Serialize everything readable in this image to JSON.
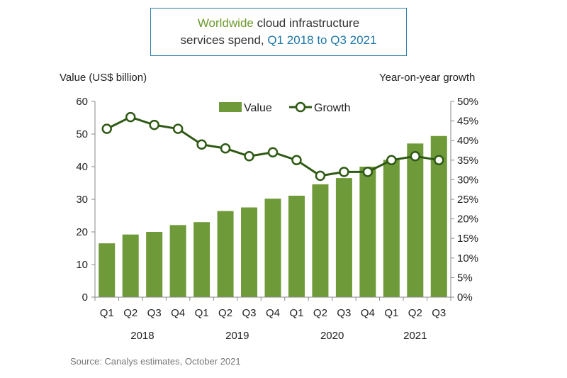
{
  "title": {
    "part1": "Worldwide",
    "part2": " cloud infrastructure",
    "part3": "services spend, ",
    "part4": "Q1 2018 to Q3 2021"
  },
  "source": "Source: Canalys estimates, October 2021",
  "colors": {
    "bar": "#6f9a3a",
    "line": "#2f5a14",
    "title_accent_green": "#6c9a2e",
    "title_accent_blue": "#1f77a8"
  },
  "chart_data": {
    "type": "bar",
    "title": "Worldwide cloud infrastructure services spend, Q1 2018 to Q3 2021",
    "ylabel": "Value (US$ billion)",
    "y2label": "Year-on-year growth",
    "ylim": [
      0,
      60
    ],
    "y2lim": [
      0,
      0.5
    ],
    "yticks": [
      "0",
      "10",
      "20",
      "30",
      "40",
      "50",
      "60"
    ],
    "y2ticks": [
      "0%",
      "5%",
      "10%",
      "15%",
      "20%",
      "25%",
      "30%",
      "35%",
      "40%",
      "45%",
      "50%"
    ],
    "categories": [
      "Q1",
      "Q2",
      "Q3",
      "Q4",
      "Q1",
      "Q2",
      "Q3",
      "Q4",
      "Q1",
      "Q2",
      "Q3",
      "Q4",
      "Q1",
      "Q2",
      "Q3"
    ],
    "years": [
      {
        "label": "2018",
        "start": 0,
        "end": 3
      },
      {
        "label": "2019",
        "start": 4,
        "end": 7
      },
      {
        "label": "2020",
        "start": 8,
        "end": 11
      },
      {
        "label": "2021",
        "start": 12,
        "end": 14
      }
    ],
    "series": [
      {
        "name": "Value",
        "type": "bar",
        "axis": "left",
        "values": [
          16.5,
          19.2,
          20.0,
          22.1,
          23.0,
          26.4,
          27.5,
          30.2,
          31.1,
          34.6,
          36.5,
          40.0,
          42.1,
          47.1,
          49.4
        ]
      },
      {
        "name": "Growth",
        "type": "line",
        "axis": "right",
        "values": [
          0.43,
          0.46,
          0.44,
          0.43,
          0.39,
          0.38,
          0.36,
          0.37,
          0.35,
          0.31,
          0.32,
          0.32,
          0.35,
          0.36,
          0.35
        ]
      }
    ],
    "legend_position": "top",
    "grid": false
  }
}
